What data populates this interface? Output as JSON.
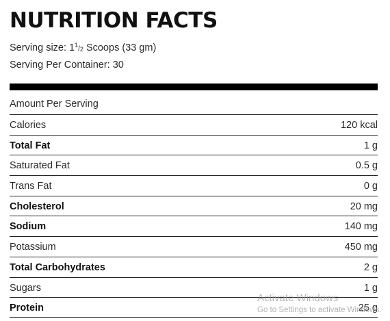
{
  "label": {
    "title": "NUTRITION FACTS",
    "serving_size_prefix": "Serving size: 1",
    "serving_size_fraction_num": "1",
    "serving_size_fraction_sep": "/",
    "serving_size_fraction_den": "2",
    "serving_size_suffix": " Scoops (33 gm)",
    "servings_per_container": "Serving Per Container: 30",
    "amount_per_serving": "Amount Per Serving",
    "rows": [
      {
        "name": "Calories",
        "value": "120 kcal",
        "bold": false
      },
      {
        "name": "Total Fat",
        "value": "1 g",
        "bold": true
      },
      {
        "name": "Saturated Fat",
        "value": "0.5 g",
        "bold": false
      },
      {
        "name": "Trans Fat",
        "value": "0 g",
        "bold": false
      },
      {
        "name": "Cholesterol",
        "value": "20 mg",
        "bold": true
      },
      {
        "name": "Sodium",
        "value": "140 mg",
        "bold": true
      },
      {
        "name": "Potassium",
        "value": "450 mg",
        "bold": false
      },
      {
        "name": "Total Carbohydrates",
        "value": "2 g",
        "bold": true
      },
      {
        "name": "Sugars",
        "value": "1 g",
        "bold": false
      },
      {
        "name": "Protein",
        "value": "25 g",
        "bold": true
      }
    ]
  },
  "watermark": {
    "line1": "Activate Windows",
    "line2": "Go to Settings to activate Windows."
  }
}
